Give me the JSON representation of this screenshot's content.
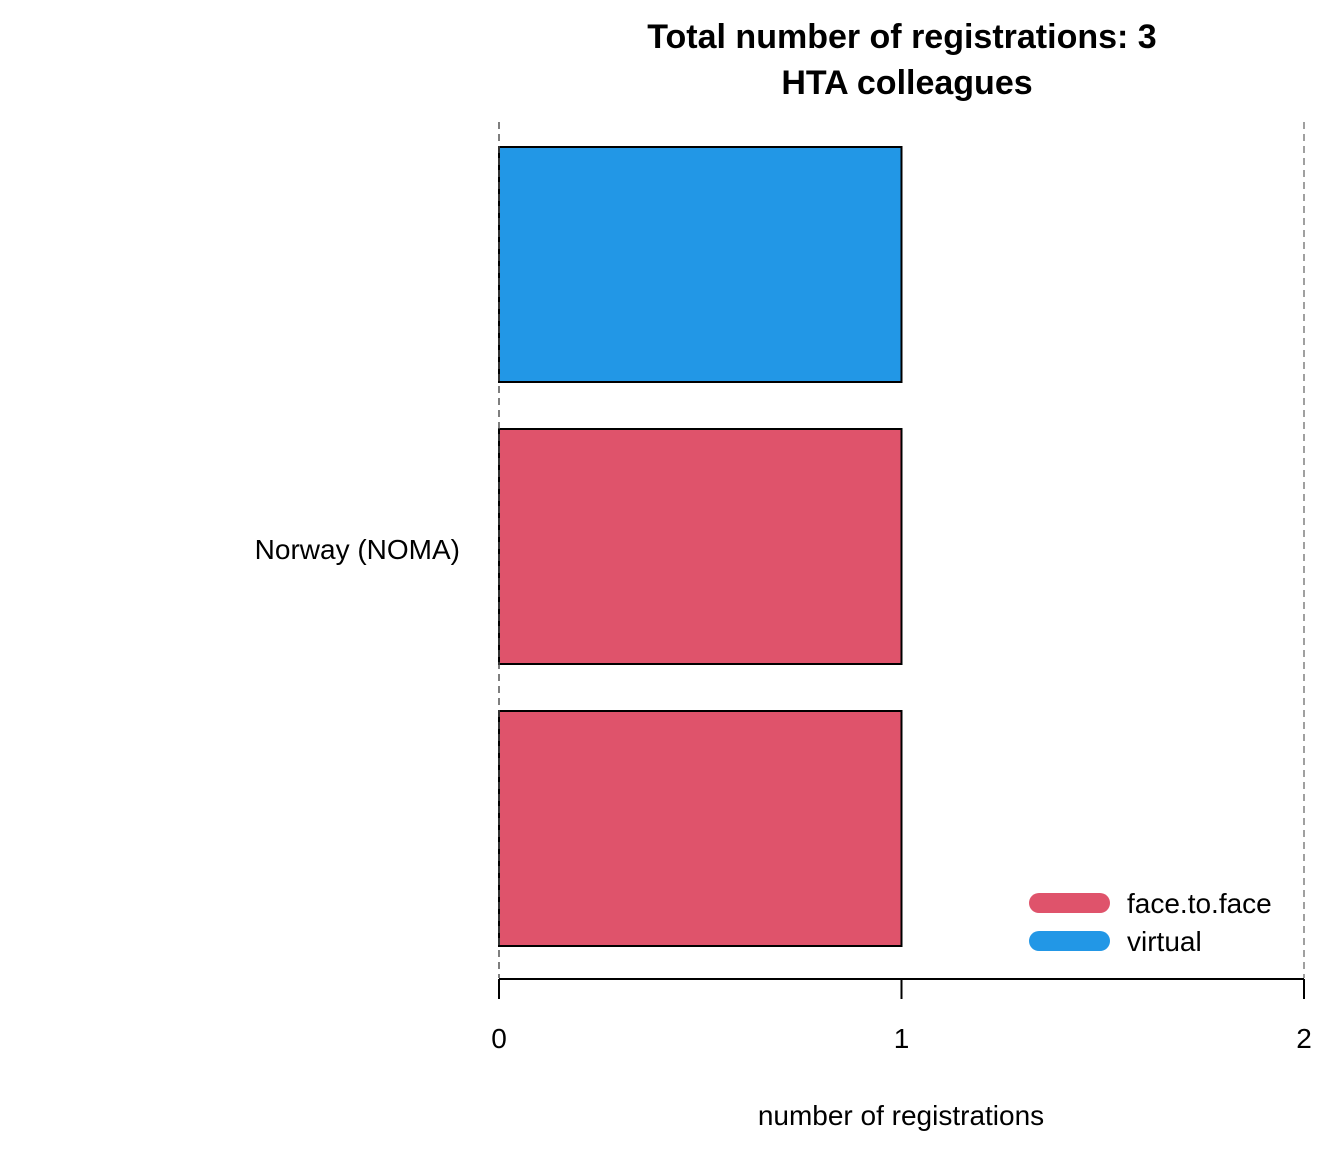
{
  "chart_data": {
    "type": "bar",
    "orientation": "horizontal",
    "title": "Total number of registrations: 3",
    "subtitle": "HTA colleagues",
    "category_label": "Norway (NOMA)",
    "bars": [
      {
        "series": "virtual",
        "value": 1
      },
      {
        "series": "face.to.face",
        "value": 1
      },
      {
        "series": "face.to.face",
        "value": 1
      }
    ],
    "series": [
      {
        "name": "face.to.face",
        "color": "#DF536B"
      },
      {
        "name": "virtual",
        "color": "#2297E6"
      }
    ],
    "xlabel": "number of registrations",
    "xlim": [
      0,
      2
    ],
    "xticks": [
      "0",
      "1",
      "2"
    ],
    "gridlines": "dashed vertical at 0 and 2",
    "legend_position": "bottom-right"
  }
}
